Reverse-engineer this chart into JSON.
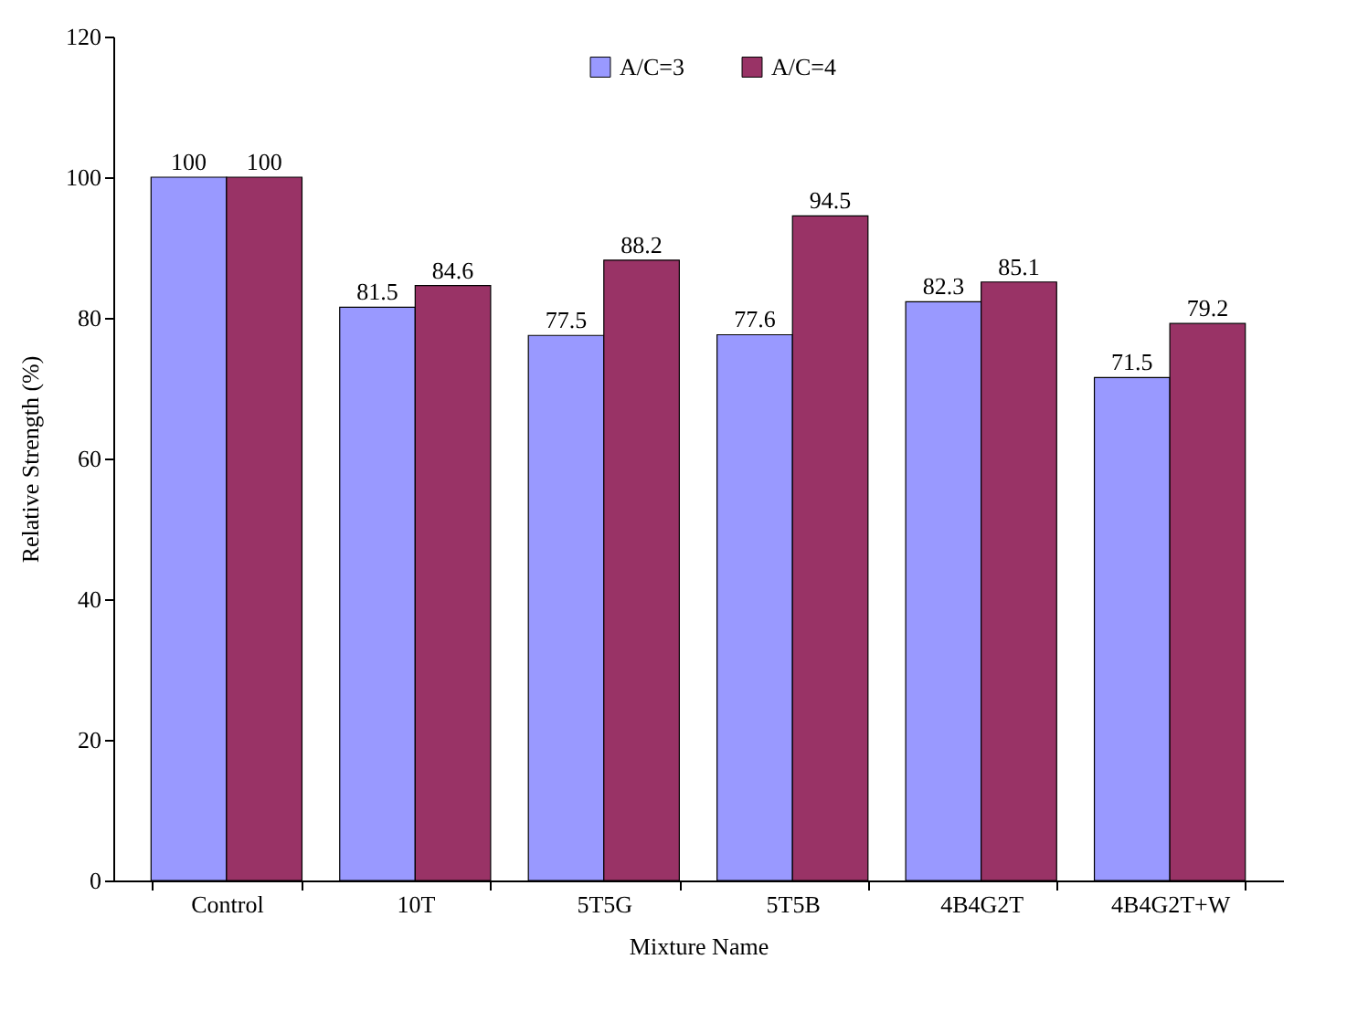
{
  "chart_data": {
    "type": "bar",
    "xlabel": "Mixture Name",
    "ylabel": "Relative Strength (%)",
    "categories": [
      "Control",
      "10T",
      "5T5G",
      "5T5B",
      "4B4G2T",
      "4B4G2T+W"
    ],
    "series": [
      {
        "name": "A/C=3",
        "color": "#9999ff",
        "values": [
          100,
          81.5,
          77.5,
          77.6,
          82.3,
          71.5
        ]
      },
      {
        "name": "A/C=4",
        "color": "#993366",
        "values": [
          100,
          84.6,
          88.2,
          94.5,
          85.1,
          79.2
        ]
      }
    ],
    "ylim": [
      0,
      120
    ],
    "yticks": [
      0,
      20,
      40,
      60,
      80,
      100,
      120
    ],
    "grid": false,
    "legend": "top",
    "data_labels": true
  }
}
